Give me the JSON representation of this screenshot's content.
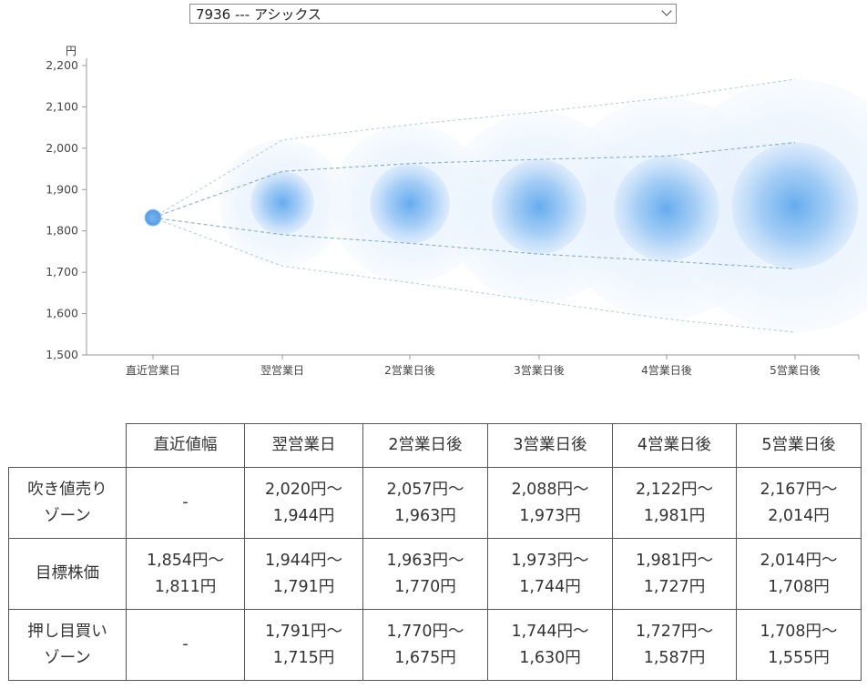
{
  "selector": {
    "value": "7936 --- アシックス"
  },
  "chart_data": {
    "type": "bubble",
    "y_unit": "円",
    "ylim": [
      1500,
      2200
    ],
    "y_ticks": [
      "2,200",
      "2,100",
      "2,000",
      "1,900",
      "1,800",
      "1,700",
      "1,600",
      "1,500"
    ],
    "y_tick_values": [
      2200,
      2100,
      2000,
      1900,
      1800,
      1700,
      1600,
      1500
    ],
    "categories": [
      "直近営業日",
      "翌営業日",
      "2営業日後",
      "3営業日後",
      "4営業日後",
      "5営業日後"
    ],
    "target_mid": [
      1832,
      1868,
      1866,
      1858,
      1854,
      1861
    ],
    "target_high": [
      1854,
      1944,
      1963,
      1973,
      1981,
      2014
    ],
    "target_low": [
      1811,
      1791,
      1770,
      1744,
      1727,
      1708
    ],
    "upper_zone_high": [
      null,
      2020,
      2057,
      2088,
      2122,
      2167
    ],
    "lower_zone_low": [
      null,
      1715,
      1675,
      1630,
      1587,
      1555
    ],
    "colors": {
      "bubble": "#5ea8ee",
      "outer": "#d8e9fb",
      "line": "#7aa6cc",
      "axis": "#999999"
    }
  },
  "table": {
    "headers": [
      "直近値幅",
      "翌営業日",
      "2営業日後",
      "3営業日後",
      "4営業日後",
      "5営業日後"
    ],
    "rows": [
      {
        "label_lines": [
          "吹き値売り",
          "ゾーン"
        ],
        "cells": [
          [
            "-"
          ],
          [
            "2,020円～",
            "1,944円"
          ],
          [
            "2,057円～",
            "1,963円"
          ],
          [
            "2,088円～",
            "1,973円"
          ],
          [
            "2,122円～",
            "1,981円"
          ],
          [
            "2,167円～",
            "2,014円"
          ]
        ]
      },
      {
        "label_lines": [
          "目標株価"
        ],
        "cells": [
          [
            "1,854円～",
            "1,811円"
          ],
          [
            "1,944円～",
            "1,791円"
          ],
          [
            "1,963円～",
            "1,770円"
          ],
          [
            "1,973円～",
            "1,744円"
          ],
          [
            "1,981円～",
            "1,727円"
          ],
          [
            "2,014円～",
            "1,708円"
          ]
        ]
      },
      {
        "label_lines": [
          "押し目買い",
          "ゾーン"
        ],
        "cells": [
          [
            "-"
          ],
          [
            "1,791円～",
            "1,715円"
          ],
          [
            "1,770円～",
            "1,675円"
          ],
          [
            "1,744円～",
            "1,630円"
          ],
          [
            "1,727円～",
            "1,587円"
          ],
          [
            "1,708円～",
            "1,555円"
          ]
        ]
      }
    ]
  }
}
